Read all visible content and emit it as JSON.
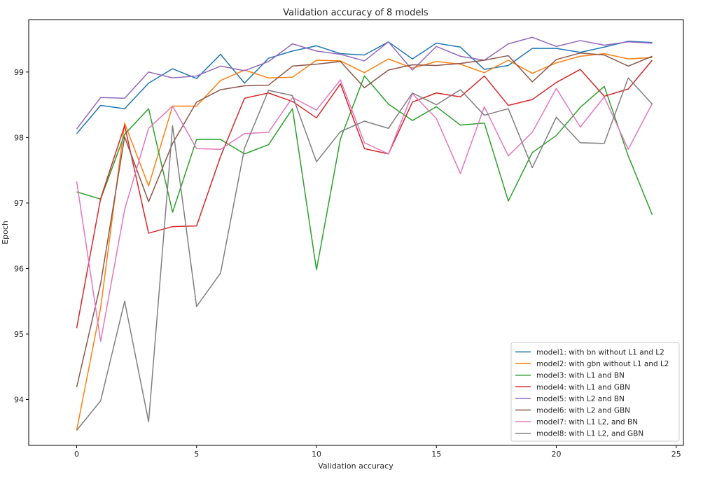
{
  "chart_data": {
    "type": "line",
    "title": "Validation accuracy of 8 models",
    "xlabel": "Validation accuracy",
    "ylabel": "Epoch",
    "xlim": [
      -2,
      25.3
    ],
    "ylim": [
      93.3,
      99.8
    ],
    "xticks": [
      0,
      5,
      10,
      15,
      20,
      25
    ],
    "yticks": [
      94,
      95,
      96,
      97,
      98,
      99
    ],
    "grid": false,
    "legend_position": "lower-right",
    "x": [
      0,
      1,
      2,
      3,
      4,
      5,
      6,
      7,
      8,
      9,
      10,
      11,
      12,
      13,
      14,
      15,
      16,
      17,
      18,
      19,
      20,
      21,
      22,
      23,
      24
    ],
    "series": [
      {
        "name": "model1: with bn without L1 and L2",
        "color": "#1f77b4",
        "values": [
          98.06,
          98.49,
          98.44,
          98.83,
          99.05,
          98.9,
          99.27,
          98.83,
          99.21,
          99.32,
          99.4,
          99.28,
          99.26,
          99.46,
          99.2,
          99.44,
          99.38,
          99.04,
          99.1,
          99.36,
          99.36,
          99.3,
          99.38,
          99.47,
          99.45
        ]
      },
      {
        "name": "model2: with gbn without L1 and L2",
        "color": "#ff7f0e",
        "values": [
          93.53,
          95.4,
          98.22,
          97.26,
          98.48,
          98.48,
          98.87,
          99.03,
          98.91,
          98.92,
          99.18,
          99.17,
          98.99,
          99.2,
          99.06,
          99.16,
          99.12,
          98.99,
          99.18,
          98.98,
          99.14,
          99.24,
          99.28,
          99.2,
          99.22
        ]
      },
      {
        "name": "model3: with L1 and BN",
        "color": "#2ca02c",
        "values": [
          97.17,
          97.06,
          98.05,
          98.44,
          96.86,
          97.97,
          97.97,
          97.75,
          97.89,
          98.44,
          95.98,
          97.98,
          98.94,
          98.51,
          98.26,
          98.47,
          98.19,
          98.22,
          97.03,
          97.77,
          98.03,
          98.46,
          98.78,
          97.72,
          96.82
        ]
      },
      {
        "name": "model4: with L1 and GBN",
        "color": "#d62728",
        "values": [
          95.09,
          97.07,
          98.18,
          96.54,
          96.64,
          96.65,
          97.71,
          98.6,
          98.68,
          98.55,
          98.3,
          98.82,
          97.83,
          97.75,
          98.54,
          98.68,
          98.62,
          98.94,
          98.49,
          98.58,
          98.84,
          99.04,
          98.63,
          98.74,
          99.18
        ]
      },
      {
        "name": "model5: with L2 and BN",
        "color": "#9467bd",
        "values": [
          98.13,
          98.61,
          98.6,
          99.0,
          98.91,
          98.94,
          99.09,
          99.02,
          99.16,
          99.43,
          99.32,
          99.27,
          99.17,
          99.46,
          99.03,
          99.39,
          99.24,
          99.18,
          99.43,
          99.53,
          99.39,
          99.48,
          99.41,
          99.46,
          99.44
        ]
      },
      {
        "name": "model6: with L2 and GBN",
        "color": "#8c564b",
        "values": [
          94.19,
          95.77,
          98.01,
          97.02,
          97.91,
          98.54,
          98.73,
          98.79,
          98.8,
          99.09,
          99.12,
          99.16,
          98.76,
          99.03,
          99.11,
          99.1,
          99.13,
          99.18,
          99.25,
          98.85,
          99.19,
          99.29,
          99.26,
          99.09,
          99.24
        ]
      },
      {
        "name": "model7: with L1 L2, and BN",
        "color": "#e377c2",
        "values": [
          97.33,
          94.89,
          96.9,
          98.14,
          98.48,
          97.83,
          97.82,
          98.06,
          98.08,
          98.61,
          98.42,
          98.88,
          97.92,
          97.75,
          98.67,
          98.29,
          97.45,
          98.47,
          97.72,
          98.08,
          98.75,
          98.16,
          98.62,
          97.82,
          98.52
        ]
      },
      {
        "name": "model8: with L1 L2, and GBN",
        "color": "#7f7f7f",
        "values": [
          93.53,
          93.98,
          95.5,
          93.66,
          98.18,
          95.42,
          95.93,
          97.84,
          98.72,
          98.64,
          97.63,
          98.09,
          98.25,
          98.14,
          98.68,
          98.5,
          98.73,
          98.34,
          98.44,
          97.54,
          98.31,
          97.92,
          97.91,
          98.91,
          98.51
        ]
      }
    ]
  }
}
